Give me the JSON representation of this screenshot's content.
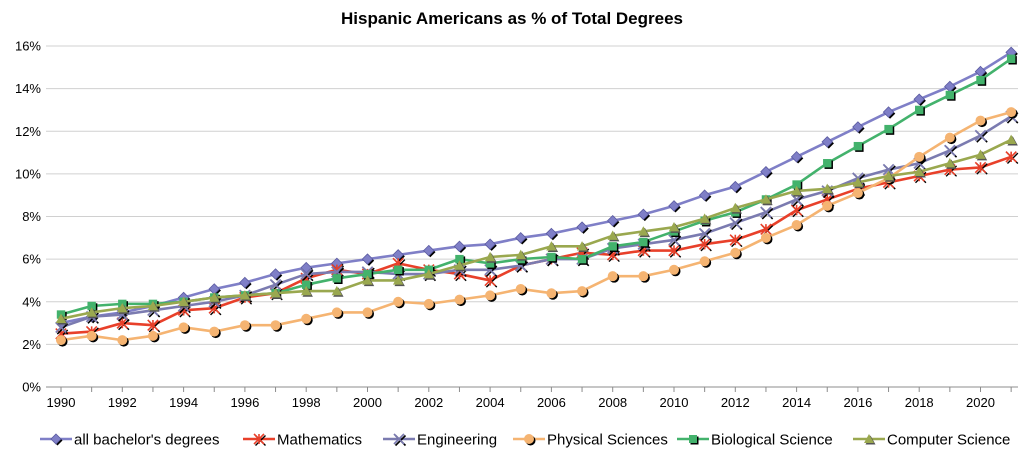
{
  "chart_data": {
    "type": "line",
    "title": "Hispanic Americans as % of Total Degrees",
    "xlabel": "",
    "ylabel": "",
    "xlim": [
      1990,
      2021
    ],
    "ylim": [
      0,
      16
    ],
    "x_ticks": [
      1990,
      1992,
      1994,
      1996,
      1998,
      2000,
      2002,
      2004,
      2006,
      2008,
      2010,
      2012,
      2014,
      2016,
      2018,
      2020
    ],
    "x_tick_labels": [
      "1990",
      "1992",
      "1994",
      "1996",
      "1998",
      "2000",
      "2002",
      "2004",
      "2006",
      "2008",
      "2010",
      "2012",
      "2014",
      "2016",
      "2018",
      "2020"
    ],
    "y_ticks": [
      0,
      2,
      4,
      6,
      8,
      10,
      12,
      14,
      16
    ],
    "y_tick_labels": [
      "0%",
      "2%",
      "4%",
      "6%",
      "8%",
      "10%",
      "12%",
      "14%",
      "16%"
    ],
    "grid": "horizontal",
    "legend_position": "bottom",
    "x": [
      1990,
      1991,
      1992,
      1993,
      1994,
      1995,
      1996,
      1997,
      1998,
      1999,
      2000,
      2001,
      2002,
      2003,
      2004,
      2005,
      2006,
      2007,
      2008,
      2009,
      2010,
      2011,
      2012,
      2013,
      2014,
      2015,
      2016,
      2017,
      2018,
      2019,
      2020,
      2021
    ],
    "series": [
      {
        "name": "all bachelor's degrees",
        "color": "#7f7fc7",
        "marker": "diamond",
        "values": [
          3.0,
          3.3,
          3.5,
          3.8,
          4.2,
          4.6,
          4.9,
          5.3,
          5.6,
          5.8,
          6.0,
          6.2,
          6.4,
          6.6,
          6.7,
          7.0,
          7.2,
          7.5,
          7.8,
          8.1,
          8.5,
          9.0,
          9.4,
          10.1,
          10.8,
          11.5,
          12.2,
          12.9,
          13.5,
          14.1,
          14.8,
          15.7
        ]
      },
      {
        "name": "Mathematics",
        "color": "#e8402a",
        "marker": "star",
        "values": [
          2.5,
          2.6,
          3.0,
          2.9,
          3.6,
          3.7,
          4.2,
          4.4,
          5.1,
          5.5,
          5.3,
          5.8,
          5.5,
          5.3,
          5.0,
          5.7,
          6.0,
          6.3,
          6.2,
          6.4,
          6.4,
          6.7,
          6.9,
          7.4,
          8.3,
          8.8,
          9.3,
          9.6,
          9.9,
          10.2,
          10.3,
          10.8
        ]
      },
      {
        "name": "Engineering",
        "color": "#7b7bb0",
        "marker": "x",
        "values": [
          2.8,
          3.3,
          3.4,
          3.6,
          3.8,
          4.0,
          4.3,
          4.8,
          5.3,
          5.4,
          5.4,
          5.3,
          5.3,
          5.5,
          5.5,
          5.7,
          6.0,
          6.0,
          6.5,
          6.7,
          6.9,
          7.2,
          7.7,
          8.2,
          8.8,
          9.2,
          9.8,
          10.2,
          10.5,
          11.1,
          11.8,
          12.7
        ]
      },
      {
        "name": "Physical Sciences",
        "color": "#f5b472",
        "marker": "circle",
        "values": [
          2.2,
          2.4,
          2.2,
          2.4,
          2.8,
          2.6,
          2.9,
          2.9,
          3.2,
          3.5,
          3.5,
          4.0,
          3.9,
          4.1,
          4.3,
          4.6,
          4.4,
          4.5,
          5.2,
          5.2,
          5.5,
          5.9,
          6.3,
          7.0,
          7.6,
          8.5,
          9.1,
          9.8,
          10.8,
          11.7,
          12.5,
          12.9
        ]
      },
      {
        "name": "Biological Science",
        "color": "#43b26c",
        "marker": "square",
        "values": [
          3.4,
          3.8,
          3.9,
          3.9,
          4.0,
          4.2,
          4.3,
          4.4,
          4.8,
          5.1,
          5.3,
          5.5,
          5.5,
          6.0,
          5.8,
          6.0,
          6.1,
          6.0,
          6.6,
          6.8,
          7.3,
          7.8,
          8.2,
          8.8,
          9.5,
          10.5,
          11.3,
          12.1,
          13.0,
          13.7,
          14.4,
          15.4
        ]
      },
      {
        "name": "Computer Science",
        "color": "#9aa84f",
        "marker": "triangle",
        "values": [
          3.2,
          3.5,
          3.7,
          3.8,
          4.0,
          4.2,
          4.3,
          4.4,
          4.5,
          4.5,
          5.0,
          5.0,
          5.3,
          5.7,
          6.1,
          6.2,
          6.6,
          6.6,
          7.1,
          7.3,
          7.5,
          7.9,
          8.4,
          8.8,
          9.2,
          9.3,
          9.6,
          9.9,
          10.1,
          10.5,
          10.9,
          11.6
        ]
      }
    ]
  }
}
